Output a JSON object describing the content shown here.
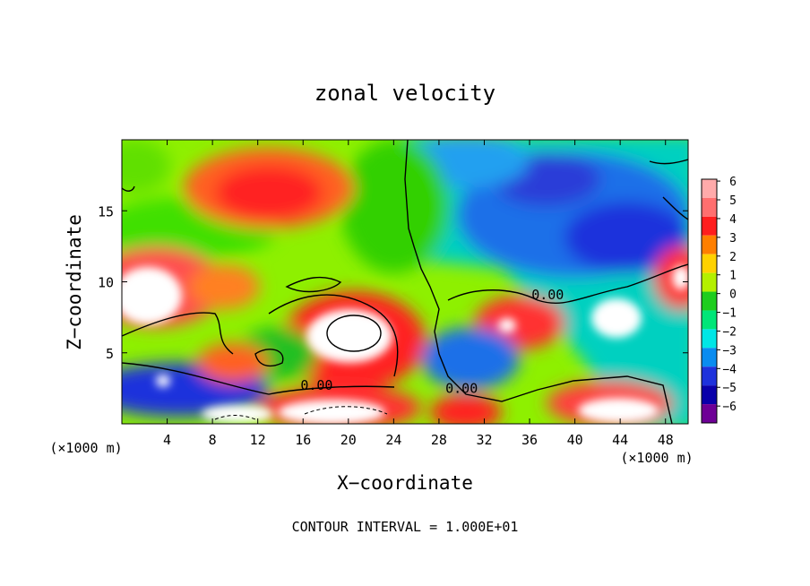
{
  "chart_data": {
    "type": "heatmap",
    "title": "zonal velocity",
    "xlabel": "X−coordinate",
    "ylabel": "Z−coordinate",
    "x_unit_left": "(×1000 m)",
    "x_unit_right": "(×1000 m)",
    "xlim": [
      0,
      50
    ],
    "ylim": [
      0,
      20
    ],
    "x_ticks": [
      4,
      8,
      12,
      16,
      20,
      24,
      28,
      32,
      36,
      40,
      44,
      48
    ],
    "y_ticks": [
      5,
      10,
      15
    ],
    "colorbar": {
      "levels": [
        6,
        5,
        4,
        3,
        2,
        1,
        0,
        -1,
        -2,
        -3,
        -4,
        -5,
        -6
      ],
      "labels": [
        "6",
        "5",
        "4",
        "3",
        "2",
        "1",
        "0",
        "−1",
        "−2",
        "−3",
        "−4",
        "−5",
        "−6"
      ],
      "colors": [
        "#ffaaaa",
        "#ff6f6f",
        "#ff1e1e",
        "#ff7f00",
        "#ffd200",
        "#b4f000",
        "#1ecd1e",
        "#00e678",
        "#00e6e6",
        "#0a8cf0",
        "#1e32dc",
        "#0a00aa",
        "#6e0096"
      ],
      "out_of_range_color": "#ffffff"
    },
    "contour_labels": [
      {
        "x": 17.2,
        "z": 2.7,
        "text": "0.00"
      },
      {
        "x": 30.0,
        "z": 2.5,
        "text": "0.00"
      },
      {
        "x": 37.6,
        "z": 9.1,
        "text": "0.00"
      }
    ],
    "grid": false,
    "legend": "right",
    "footnote": "CONTOUR INTERVAL = 1.000E+01"
  }
}
